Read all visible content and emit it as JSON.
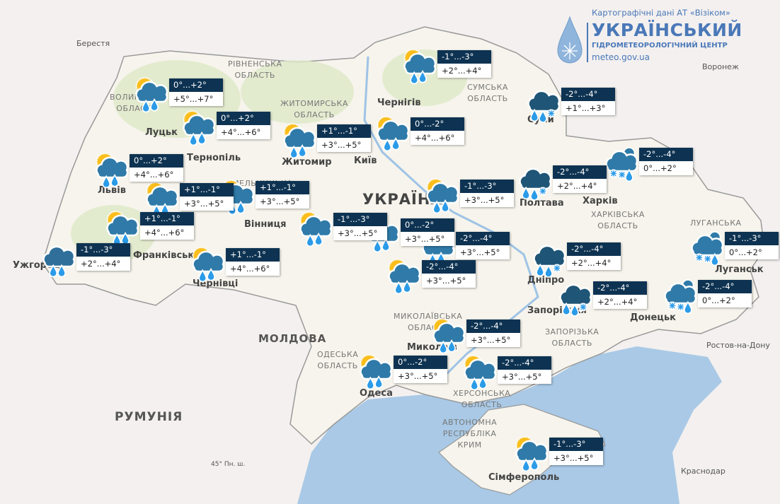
{
  "header": {
    "source": "Картографічні дані АТ «Візіком»",
    "org_title": "УКРАЇНСЬКИЙ",
    "org_subtitle": "ГІДРОМЕТЕОРОЛОГІЧНИЙ ЦЕНТР",
    "website": "meteo.gov.ua"
  },
  "colors": {
    "label_dark": "#0e3352",
    "sea": "#a9c9e6",
    "land": "#f6f4ec",
    "forest": "#d9e6c0",
    "neighbor": "#f1edee",
    "logo": "#4a78b8"
  },
  "countries": {
    "ukraine": "УКРАЇНА",
    "moldova": "МОЛДОВА",
    "romania": "РУМУНІЯ",
    "parallel": "45° Пн. ш."
  },
  "cities": [
    "Берестя",
    "Луцьк",
    "Львів",
    "Тернопіль",
    "Франківськ",
    "Ужгород",
    "Чернівці",
    "Вінниця",
    "Житомир",
    "Київ",
    "Чернігів",
    "Суми",
    "Полтава",
    "Харків",
    "Дніпро",
    "Запоріжжя",
    "Донецьк",
    "Луганськ",
    "Одеса",
    "Миколаїв",
    "Сімферополь",
    "Воронеж",
    "Ростов-на-Дону",
    "Краснодар"
  ],
  "regions": [
    "ВОЛИНСЬКА\nОБЛАСТЬ",
    "РІВНЕНСЬКА\nОБЛАСТЬ",
    "ЖИТОМИРСЬКА\nОБЛАСТЬ",
    "СУМСЬКА\nОБЛАСТЬ",
    "ХАРКІВСЬКА\nОБЛАСТЬ",
    "ЛУГАНСЬКА",
    "МИКОЛАЇВСЬКА\nОБЛАСТЬ",
    "ЗАПОРІЗЬКА\nОБЛАСТЬ",
    "ОДЕСЬКА\nОБЛАСТЬ",
    "ХЕРСОНСЬКА\nОБЛАСТЬ",
    "АВТОНОМНА\nРЕСПУБЛІКА\nКРИМ",
    "ХМЕЛЬНИЦЬКА"
  ],
  "forecasts": [
    {
      "icon": "sun-cloud-rain",
      "night": "0°...+2°",
      "day": "+5°...+7°"
    },
    {
      "icon": "sun-cloud-rain",
      "night": "0°...+2°",
      "day": "+4°...+6°"
    },
    {
      "icon": "sun-cloud-rain",
      "night": "+1°...-1°",
      "day": "+3°...+5°"
    },
    {
      "icon": "sun-cloud-rain",
      "night": "-1°...-3°",
      "day": "+2°...+4°"
    },
    {
      "icon": "sun-cloud-rain",
      "night": "0°...-2°",
      "day": "+4°...+6°"
    },
    {
      "icon": "cloud-rain-snow",
      "night": "-2°...-4°",
      "day": "+1°...+3°"
    },
    {
      "icon": "sun-cloud-rain",
      "night": "0°...+2°",
      "day": "+4°...+6°"
    },
    {
      "icon": "sun-cloud-rain",
      "night": "+1°...-1°",
      "day": "+3°...+5°"
    },
    {
      "icon": "sun-cloud-rain",
      "night": "+1°...-1°",
      "day": "+3°...+5°"
    },
    {
      "icon": "cloud-rain-snow",
      "night": "-2°...-4°",
      "day": "+2°...+4°"
    },
    {
      "icon": "cloud-snow",
      "night": "-2°...-4°",
      "day": "0°...+2°"
    },
    {
      "icon": "sun-cloud-rain",
      "night": "-1°...-3°",
      "day": "+3°...+5°"
    },
    {
      "icon": "sun-cloud-rain",
      "night": "+1°...-1°",
      "day": "+4°...+6°"
    },
    {
      "icon": "sun-cloud-rain",
      "night": "-1°...-3°",
      "day": "+3°...+5°"
    },
    {
      "icon": "sun-cloud-rain",
      "night": "0°...-2°",
      "day": "+3°...+5°"
    },
    {
      "icon": "sun-cloud-rain",
      "night": "-2°...-4°",
      "day": "+3°...+5°"
    },
    {
      "icon": "cloud-rain",
      "night": "-1°...-3°",
      "day": "+2°...+4°"
    },
    {
      "icon": "sun-cloud-rain",
      "night": "+1°...-1°",
      "day": "+4°...+6°"
    },
    {
      "icon": "cloud-rain-snow",
      "night": "-2°...-4°",
      "day": "+2°...+4°"
    },
    {
      "icon": "cloud-snow",
      "night": "-1°...-3°",
      "day": "0°...+2°"
    },
    {
      "icon": "sun-cloud-rain",
      "night": "-2°...-4°",
      "day": "+3°...+5°"
    },
    {
      "icon": "cloud-rain-snow",
      "night": "-2°...-4°",
      "day": "+2°...+4°"
    },
    {
      "icon": "cloud-snow",
      "night": "-2°...-4°",
      "day": "0°...+2°"
    },
    {
      "icon": "sun-cloud-rain",
      "night": "-2°...-4°",
      "day": "+3°...+5°"
    },
    {
      "icon": "sun-cloud-rain",
      "night": "0°...-2°",
      "day": "+3°...+5°"
    },
    {
      "icon": "sun-cloud-rain",
      "night": "-2°...-4°",
      "day": "+3°...+5°"
    },
    {
      "icon": "sun-cloud-rain",
      "night": "-1°...-3°",
      "day": "+3°...+5°"
    }
  ]
}
